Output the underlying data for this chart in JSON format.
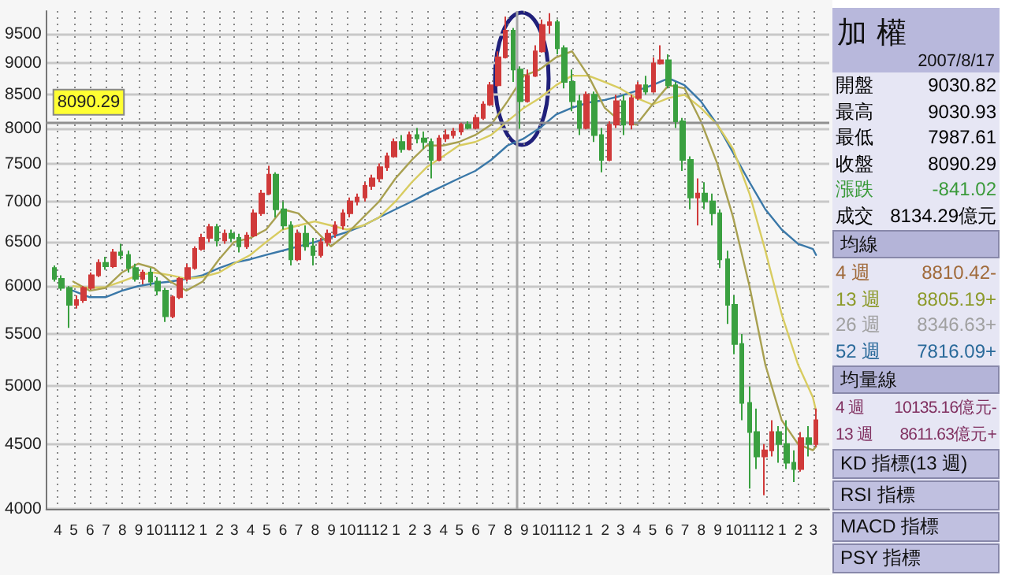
{
  "chart_data": [
    {
      "type": "candlestick",
      "x": [
        "2005-03-25",
        "2005-04-08",
        "2005-04-22",
        "2005-05-06",
        "2005-05-20",
        "2005-06-03",
        "2005-06-17",
        "2005-07-01",
        "2005-07-15",
        "2005-07-29",
        "2005-08-12",
        "2005-08-26",
        "2005-09-09",
        "2005-09-23",
        "2005-10-07",
        "2005-10-21",
        "2005-11-04",
        "2005-11-18",
        "2005-12-02",
        "2005-12-16",
        "2005-12-30",
        "2006-01-13",
        "2006-01-27",
        "2006-02-10",
        "2006-02-24",
        "2006-03-10",
        "2006-03-24",
        "2006-04-07",
        "2006-04-21",
        "2006-05-05",
        "2006-05-19",
        "2006-06-02",
        "2006-06-16",
        "2006-06-30",
        "2006-07-14",
        "2006-07-28",
        "2006-08-11",
        "2006-08-25",
        "2006-09-08",
        "2006-09-22",
        "2006-10-06",
        "2006-10-20",
        "2006-11-03",
        "2006-11-17",
        "2006-12-01",
        "2006-12-15",
        "2006-12-29",
        "2007-01-12",
        "2007-01-26",
        "2007-02-09",
        "2007-02-23",
        "2007-03-09",
        "2007-03-23",
        "2007-04-06",
        "2007-04-20",
        "2007-05-04",
        "2007-05-18",
        "2007-06-01",
        "2007-06-15",
        "2007-06-29",
        "2007-07-13",
        "2007-07-27",
        "2007-08-10",
        "2007-08-24",
        "2007-09-07",
        "2007-09-21",
        "2007-10-05",
        "2007-10-19",
        "2007-11-02",
        "2007-11-16",
        "2007-11-30",
        "2007-12-14",
        "2007-12-28",
        "2008-01-11",
        "2008-01-25",
        "2008-02-08",
        "2008-02-22",
        "2008-03-07",
        "2008-03-21",
        "2008-04-04",
        "2008-04-18",
        "2008-05-02",
        "2008-05-16",
        "2008-05-30",
        "2008-06-13",
        "2008-06-27",
        "2008-07-11",
        "2008-07-25",
        "2008-08-08",
        "2008-08-22",
        "2008-09-05",
        "2008-09-19",
        "2008-10-03",
        "2008-10-17",
        "2008-10-31",
        "2008-11-14",
        "2008-11-28",
        "2008-12-12",
        "2008-12-26",
        "2009-01-09",
        "2009-01-23",
        "2009-02-06",
        "2009-02-20",
        "2009-03-06"
      ],
      "ohlc": [
        [
          6200,
          6230,
          6050,
          6080
        ],
        [
          6080,
          6120,
          5950,
          5980
        ],
        [
          5980,
          6000,
          5560,
          5800
        ],
        [
          5800,
          5900,
          5760,
          5850
        ],
        [
          5850,
          6000,
          5820,
          5980
        ],
        [
          5980,
          6150,
          5960,
          6120
        ],
        [
          6120,
          6300,
          6100,
          6260
        ],
        [
          6260,
          6330,
          6180,
          6220
        ],
        [
          6220,
          6420,
          6200,
          6380
        ],
        [
          6380,
          6480,
          6300,
          6350
        ],
        [
          6350,
          6400,
          6150,
          6200
        ],
        [
          6200,
          6250,
          6050,
          6080
        ],
        [
          6080,
          6180,
          6020,
          6150
        ],
        [
          6150,
          6200,
          6000,
          6050
        ],
        [
          6050,
          6100,
          5900,
          5950
        ],
        [
          5950,
          5980,
          5620,
          5680
        ],
        [
          5680,
          5900,
          5660,
          5880
        ],
        [
          5880,
          6100,
          5860,
          6080
        ],
        [
          6080,
          6250,
          6050,
          6200
        ],
        [
          6200,
          6450,
          6180,
          6420
        ],
        [
          6420,
          6600,
          6400,
          6550
        ],
        [
          6550,
          6720,
          6500,
          6680
        ],
        [
          6680,
          6720,
          6450,
          6520
        ],
        [
          6520,
          6650,
          6480,
          6600
        ],
        [
          6600,
          6650,
          6500,
          6550
        ],
        [
          6550,
          6600,
          6380,
          6450
        ],
        [
          6450,
          6620,
          6420,
          6580
        ],
        [
          6580,
          6900,
          6560,
          6850
        ],
        [
          6850,
          7150,
          6820,
          7100
        ],
        [
          7100,
          7470,
          7080,
          7350
        ],
        [
          7350,
          7380,
          6800,
          6900
        ],
        [
          6900,
          7000,
          6650,
          6700
        ],
        [
          6700,
          6750,
          6230,
          6300
        ],
        [
          6300,
          6650,
          6280,
          6600
        ],
        [
          6600,
          6700,
          6400,
          6450
        ],
        [
          6450,
          6550,
          6230,
          6350
        ],
        [
          6350,
          6550,
          6320,
          6500
        ],
        [
          6500,
          6650,
          6450,
          6600
        ],
        [
          6600,
          6750,
          6550,
          6700
        ],
        [
          6700,
          6900,
          6650,
          6850
        ],
        [
          6850,
          7050,
          6800,
          7000
        ],
        [
          7000,
          7100,
          6950,
          7050
        ],
        [
          7050,
          7250,
          7000,
          7200
        ],
        [
          7200,
          7350,
          7150,
          7300
        ],
        [
          7300,
          7500,
          7250,
          7450
        ],
        [
          7450,
          7650,
          7400,
          7600
        ],
        [
          7600,
          7850,
          7580,
          7800
        ],
        [
          7800,
          7900,
          7650,
          7700
        ],
        [
          7700,
          7950,
          7680,
          7900
        ],
        [
          7900,
          8000,
          7780,
          7850
        ],
        [
          7850,
          7950,
          7700,
          7800
        ],
        [
          7800,
          7850,
          7300,
          7550
        ],
        [
          7550,
          7900,
          7530,
          7850
        ],
        [
          7850,
          7980,
          7800,
          7900
        ],
        [
          7900,
          8000,
          7850,
          7950
        ],
        [
          7950,
          8080,
          7900,
          8050
        ],
        [
          8050,
          8100,
          7980,
          8000
        ],
        [
          8000,
          8200,
          7980,
          8150
        ],
        [
          8150,
          8400,
          8120,
          8350
        ],
        [
          8350,
          8700,
          8330,
          8650
        ],
        [
          8650,
          9200,
          8630,
          9100
        ],
        [
          9100,
          9800,
          9080,
          9550
        ],
        [
          9550,
          9600,
          8700,
          8900
        ],
        [
          8900,
          8950,
          7990,
          8400
        ],
        [
          8400,
          8900,
          8380,
          8800
        ],
        [
          8800,
          9300,
          8780,
          9200
        ],
        [
          9200,
          9750,
          9180,
          9650
        ],
        [
          9650,
          9860,
          9500,
          9700
        ],
        [
          9700,
          9750,
          9150,
          9250
        ],
        [
          9250,
          9300,
          8600,
          8700
        ],
        [
          8700,
          8900,
          8250,
          8400
        ],
        [
          8400,
          8500,
          7900,
          8000
        ],
        [
          8000,
          8550,
          7980,
          8500
        ],
        [
          8500,
          8550,
          7800,
          7900
        ],
        [
          7900,
          8000,
          7380,
          7550
        ],
        [
          7550,
          8100,
          7530,
          8050
        ],
        [
          8050,
          8500,
          8000,
          8400
        ],
        [
          8400,
          8500,
          7900,
          8050
        ],
        [
          8050,
          8500,
          7980,
          8450
        ],
        [
          8450,
          8700,
          8420,
          8650
        ],
        [
          8650,
          8800,
          8500,
          8550
        ],
        [
          8550,
          9100,
          8530,
          9000
        ],
        [
          9000,
          9300,
          8980,
          9050
        ],
        [
          9050,
          9150,
          8600,
          8650
        ],
        [
          8650,
          8700,
          8000,
          8100
        ],
        [
          8100,
          8150,
          7400,
          7550
        ],
        [
          7550,
          7600,
          6900,
          7050
        ],
        [
          7050,
          7300,
          6700,
          7100
        ],
        [
          7100,
          7250,
          6900,
          7000
        ],
        [
          7000,
          7100,
          6700,
          6850
        ],
        [
          6850,
          6900,
          6200,
          6300
        ],
        [
          6300,
          6400,
          5600,
          5800
        ],
        [
          5800,
          5900,
          5300,
          5400
        ],
        [
          5400,
          5500,
          4700,
          4850
        ],
        [
          4850,
          5000,
          4150,
          4600
        ],
        [
          4600,
          4800,
          4300,
          4400
        ],
        [
          4400,
          4500,
          4100,
          4450
        ],
        [
          4450,
          4700,
          4400,
          4600
        ],
        [
          4600,
          4650,
          4350,
          4500
        ],
        [
          4500,
          4700,
          4300,
          4350
        ],
        [
          4350,
          4450,
          4200,
          4300
        ],
        [
          4300,
          4600,
          4280,
          4550
        ],
        [
          4550,
          4650,
          4400,
          4500
        ],
        [
          4500,
          4800,
          4480,
          4700
        ]
      ],
      "series": [
        {
          "type": "line",
          "color": "#3a78a8",
          "x": [
            "2005-04-30",
            "2005-05-31",
            "2005-06-30",
            "2005-07-31",
            "2005-08-31",
            "2005-09-30",
            "2005-10-31",
            "2005-11-30",
            "2005-12-31",
            "2006-01-31",
            "2006-02-28",
            "2006-03-31",
            "2006-04-30",
            "2006-05-31",
            "2006-06-30",
            "2006-07-31",
            "2006-08-31",
            "2006-09-30",
            "2006-10-31",
            "2006-11-30",
            "2006-12-31",
            "2007-01-31",
            "2007-02-28",
            "2007-03-31",
            "2007-04-30",
            "2007-05-31",
            "2007-06-30",
            "2007-07-31",
            "2007-08-31",
            "2007-09-30",
            "2007-10-31",
            "2007-11-30",
            "2007-12-31",
            "2008-01-31",
            "2008-02-29",
            "2008-03-31",
            "2008-04-30",
            "2008-05-31",
            "2008-06-30",
            "2008-07-31",
            "2008-08-31",
            "2008-09-30",
            "2008-10-31",
            "2008-11-30",
            "2008-12-31",
            "2009-01-31",
            "2009-02-28",
            "2009-03-06"
          ],
          "values": [
            5950,
            5880,
            5880,
            5950,
            6000,
            6030,
            6050,
            6080,
            6120,
            6200,
            6260,
            6300,
            6350,
            6400,
            6450,
            6500,
            6560,
            6620,
            6700,
            6800,
            6900,
            7000,
            7100,
            7200,
            7300,
            7400,
            7550,
            7750,
            7850,
            8000,
            8200,
            8300,
            8380,
            8420,
            8480,
            8560,
            8650,
            8760,
            8650,
            8400,
            8050,
            7650,
            7250,
            6900,
            6650,
            6480,
            6420,
            6350
          ]
        },
        {
          "type": "line",
          "color": "#d8cc60",
          "x": [
            "2005-04-30",
            "2005-05-31",
            "2005-06-30",
            "2005-07-31",
            "2005-08-31",
            "2005-09-30",
            "2005-10-31",
            "2005-11-30",
            "2005-12-31",
            "2006-01-31",
            "2006-02-28",
            "2006-03-31",
            "2006-04-30",
            "2006-05-31",
            "2006-06-30",
            "2006-07-31",
            "2006-08-31",
            "2006-09-30",
            "2006-10-31",
            "2006-11-30",
            "2006-12-31",
            "2007-01-31",
            "2007-02-28",
            "2007-03-31",
            "2007-04-30",
            "2007-05-31",
            "2007-06-30",
            "2007-07-31",
            "2007-08-31",
            "2007-09-30",
            "2007-10-31",
            "2007-11-30",
            "2007-12-31",
            "2008-01-31",
            "2008-02-29",
            "2008-03-31",
            "2008-04-30",
            "2008-05-31",
            "2008-06-30",
            "2008-07-31",
            "2008-08-31",
            "2008-09-30",
            "2008-10-31",
            "2008-11-30",
            "2008-12-31",
            "2009-01-31",
            "2009-02-28",
            "2009-03-06"
          ],
          "values": [
            6000,
            5980,
            5990,
            6050,
            6120,
            6150,
            6120,
            6080,
            6100,
            6150,
            6250,
            6350,
            6500,
            6650,
            6700,
            6750,
            6700,
            6650,
            6700,
            6800,
            7000,
            7250,
            7450,
            7600,
            7750,
            7800,
            7900,
            8100,
            8300,
            8450,
            8650,
            8800,
            8800,
            8700,
            8600,
            8450,
            8350,
            8450,
            8500,
            8300,
            8050,
            7700,
            7100,
            6400,
            5700,
            5200,
            4900,
            4780
          ]
        },
        {
          "type": "line",
          "color": "#a8a050",
          "x": [
            "2005-04-30",
            "2005-05-31",
            "2005-06-30",
            "2005-07-31",
            "2005-08-31",
            "2005-09-30",
            "2005-10-31",
            "2005-11-30",
            "2005-12-31",
            "2006-01-31",
            "2006-02-28",
            "2006-03-31",
            "2006-04-30",
            "2006-05-31",
            "2006-06-30",
            "2006-07-31",
            "2006-08-31",
            "2006-09-30",
            "2006-10-31",
            "2006-11-30",
            "2006-12-31",
            "2007-01-31",
            "2007-02-28",
            "2007-03-31",
            "2007-04-30",
            "2007-05-31",
            "2007-06-30",
            "2007-07-31",
            "2007-08-31",
            "2007-09-30",
            "2007-10-31",
            "2007-11-30",
            "2007-12-31",
            "2008-01-31",
            "2008-02-29",
            "2008-03-31",
            "2008-04-30",
            "2008-05-31",
            "2008-06-30",
            "2008-07-31",
            "2008-08-31",
            "2008-09-30",
            "2008-10-31",
            "2008-11-30",
            "2008-12-31",
            "2009-01-31",
            "2009-02-28",
            "2009-03-06"
          ],
          "values": [
            6050,
            5950,
            5980,
            6150,
            6250,
            6200,
            6050,
            5950,
            6050,
            6300,
            6500,
            6550,
            6650,
            6900,
            6850,
            6650,
            6450,
            6600,
            6800,
            7000,
            7300,
            7550,
            7750,
            7750,
            7800,
            7900,
            8050,
            8400,
            8800,
            8900,
            9100,
            9200,
            8800,
            8300,
            8100,
            8050,
            8350,
            8650,
            8600,
            8100,
            7500,
            6800,
            6000,
            5200,
            4700,
            4500,
            4450,
            4480
          ]
        }
      ],
      "xlim": [
        "2005-03-10",
        "2009-03-31"
      ],
      "xticks": [
        {
          "value": "2005-04-01",
          "label": "4"
        },
        {
          "value": "2005-05-01",
          "label": "5"
        },
        {
          "value": "2005-06-01",
          "label": "6"
        },
        {
          "value": "2005-07-01",
          "label": "7"
        },
        {
          "value": "2005-08-01",
          "label": "8"
        },
        {
          "value": "2005-09-01",
          "label": "9"
        },
        {
          "value": "2005-10-01",
          "label": "10"
        },
        {
          "value": "2005-11-01",
          "label": "11"
        },
        {
          "value": "2005-12-01",
          "label": "12"
        },
        {
          "value": "2006-01-01",
          "label": "1"
        },
        {
          "value": "2006-02-01",
          "label": "2"
        },
        {
          "value": "2006-03-01",
          "label": "3"
        },
        {
          "value": "2006-04-01",
          "label": "4"
        },
        {
          "value": "2006-05-01",
          "label": "5"
        },
        {
          "value": "2006-06-01",
          "label": "6"
        },
        {
          "value": "2006-07-01",
          "label": "7"
        },
        {
          "value": "2006-08-01",
          "label": "8"
        },
        {
          "value": "2006-09-01",
          "label": "9"
        },
        {
          "value": "2006-10-01",
          "label": "10"
        },
        {
          "value": "2006-11-01",
          "label": "11"
        },
        {
          "value": "2006-12-01",
          "label": "12"
        },
        {
          "value": "2007-01-01",
          "label": "1"
        },
        {
          "value": "2007-02-01",
          "label": "2"
        },
        {
          "value": "2007-03-01",
          "label": "3"
        },
        {
          "value": "2007-04-01",
          "label": "4"
        },
        {
          "value": "2007-05-01",
          "label": "5"
        },
        {
          "value": "2007-06-01",
          "label": "6"
        },
        {
          "value": "2007-07-01",
          "label": "7"
        },
        {
          "value": "2007-08-01",
          "label": "8"
        },
        {
          "value": "2007-09-01",
          "label": "9"
        },
        {
          "value": "2007-10-01",
          "label": "10"
        },
        {
          "value": "2007-11-01",
          "label": "11"
        },
        {
          "value": "2007-12-01",
          "label": "12"
        },
        {
          "value": "2008-01-01",
          "label": "1"
        },
        {
          "value": "2008-02-01",
          "label": "2"
        },
        {
          "value": "2008-03-01",
          "label": "3"
        },
        {
          "value": "2008-04-01",
          "label": "4"
        },
        {
          "value": "2008-05-01",
          "label": "5"
        },
        {
          "value": "2008-06-01",
          "label": "6"
        },
        {
          "value": "2008-07-01",
          "label": "7"
        },
        {
          "value": "2008-08-01",
          "label": "8"
        },
        {
          "value": "2008-09-01",
          "label": "9"
        },
        {
          "value": "2008-10-01",
          "label": "10"
        },
        {
          "value": "2008-11-01",
          "label": "11"
        },
        {
          "value": "2008-12-01",
          "label": "12"
        },
        {
          "value": "2009-01-01",
          "label": "1"
        },
        {
          "value": "2009-02-01",
          "label": "2"
        },
        {
          "value": "2009-03-01",
          "label": "3"
        }
      ],
      "ylim": [
        4000,
        9900
      ],
      "yticks": [
        4000,
        4500,
        5000,
        5500,
        6000,
        6500,
        7000,
        7500,
        8000,
        8500,
        9000,
        9500
      ],
      "log": "y",
      "grid": true,
      "ref_lines": [
        {
          "axis": "y",
          "value": 8090.29,
          "label": "8090.29",
          "color": "#909090"
        },
        {
          "axis": "x",
          "value": "2007-08-17",
          "color": "#a8a8a8"
        }
      ]
    },
    {
      "type": "other",
      "title": "加 權",
      "annotations": [
        "2007/8/17",
        "開盤",
        "9030.82",
        "最高",
        "9030.93",
        "最低",
        "7987.61",
        "收盤",
        "8090.29",
        "漲跌",
        "-841.02",
        "成交",
        "8134.29億元",
        "均線",
        "4 週",
        "8810.42-",
        "13 週",
        "8805.19+",
        "26 週",
        "8346.63+",
        "52 週",
        "7816.09+",
        "均量線",
        "4 週",
        "10135.16億元-",
        "13 週",
        "8611.63億元+",
        "KD 指標(13 週)",
        "RSI 指標",
        "MACD 指標",
        "PSY 指標"
      ]
    }
  ]
}
